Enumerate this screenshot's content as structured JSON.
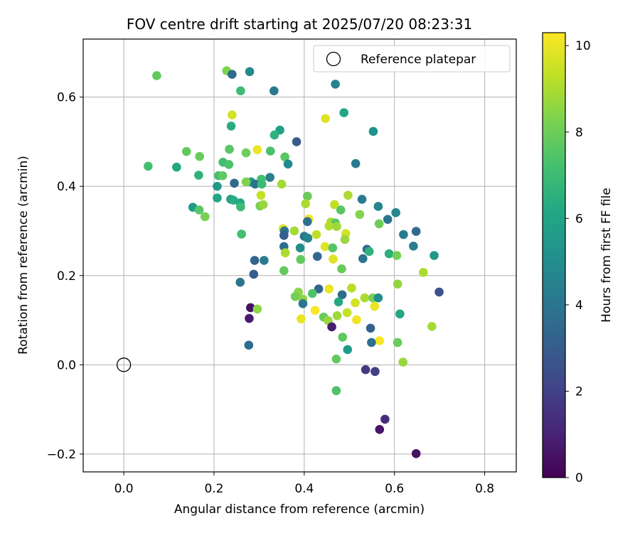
{
  "chart_data": {
    "type": "scatter",
    "title": "FOV centre drift starting at 2025/07/20 08:23:31",
    "xlabel": "Angular distance from reference (arcmin)",
    "ylabel": "Rotation from reference (arcmin)",
    "xlim": [
      -0.09,
      0.87
    ],
    "ylim": [
      -0.24,
      0.73
    ],
    "xticks": [
      0.0,
      0.2,
      0.4,
      0.6,
      0.8
    ],
    "xtick_labels": [
      "0.0",
      "0.2",
      "0.4",
      "0.6",
      "0.8"
    ],
    "yticks": [
      -0.2,
      0.0,
      0.2,
      0.4,
      0.6
    ],
    "ytick_labels": [
      "−0.2",
      "0.0",
      "0.2",
      "0.4",
      "0.6"
    ],
    "grid": true,
    "legend": {
      "placement": "top-right",
      "entries": [
        {
          "label": "Reference platepar",
          "marker": "open-circle",
          "x": 0.0,
          "y": 0.0
        }
      ]
    },
    "colorbar": {
      "label": "Hours from first FF file",
      "colormap": "viridis",
      "range": [
        0,
        10.3
      ],
      "ticks": [
        0,
        2,
        4,
        6,
        8,
        10
      ],
      "tick_labels": [
        "0",
        "2",
        "4",
        "6",
        "8",
        "10"
      ]
    },
    "points": [
      {
        "x": 0.073,
        "y": 0.648,
        "h": 7.8
      },
      {
        "x": 0.228,
        "y": 0.659,
        "h": 8.3
      },
      {
        "x": 0.24,
        "y": 0.651,
        "h": 3.6
      },
      {
        "x": 0.279,
        "y": 0.657,
        "h": 4.8
      },
      {
        "x": 0.259,
        "y": 0.614,
        "h": 7.0
      },
      {
        "x": 0.333,
        "y": 0.614,
        "h": 4.2
      },
      {
        "x": 0.469,
        "y": 0.629,
        "h": 4.6
      },
      {
        "x": 0.488,
        "y": 0.565,
        "h": 6.1
      },
      {
        "x": 0.24,
        "y": 0.56,
        "h": 9.6
      },
      {
        "x": 0.447,
        "y": 0.552,
        "h": 9.8
      },
      {
        "x": 0.553,
        "y": 0.523,
        "h": 5.2
      },
      {
        "x": 0.238,
        "y": 0.535,
        "h": 6.4
      },
      {
        "x": 0.346,
        "y": 0.526,
        "h": 5.8
      },
      {
        "x": 0.334,
        "y": 0.515,
        "h": 6.6
      },
      {
        "x": 0.383,
        "y": 0.5,
        "h": 3.0
      },
      {
        "x": 0.296,
        "y": 0.482,
        "h": 10.0
      },
      {
        "x": 0.234,
        "y": 0.483,
        "h": 7.6
      },
      {
        "x": 0.325,
        "y": 0.479,
        "h": 7.3
      },
      {
        "x": 0.271,
        "y": 0.475,
        "h": 8.0
      },
      {
        "x": 0.139,
        "y": 0.478,
        "h": 7.8
      },
      {
        "x": 0.168,
        "y": 0.467,
        "h": 7.9
      },
      {
        "x": 0.357,
        "y": 0.466,
        "h": 7.6
      },
      {
        "x": 0.514,
        "y": 0.451,
        "h": 4.2
      },
      {
        "x": 0.054,
        "y": 0.445,
        "h": 7.2
      },
      {
        "x": 0.117,
        "y": 0.443,
        "h": 6.2
      },
      {
        "x": 0.22,
        "y": 0.454,
        "h": 7.1
      },
      {
        "x": 0.233,
        "y": 0.449,
        "h": 7.4
      },
      {
        "x": 0.364,
        "y": 0.45,
        "h": 4.8
      },
      {
        "x": 0.166,
        "y": 0.425,
        "h": 6.6
      },
      {
        "x": 0.21,
        "y": 0.424,
        "h": 7.2
      },
      {
        "x": 0.219,
        "y": 0.424,
        "h": 7.7
      },
      {
        "x": 0.324,
        "y": 0.42,
        "h": 4.4
      },
      {
        "x": 0.305,
        "y": 0.416,
        "h": 7.2
      },
      {
        "x": 0.282,
        "y": 0.41,
        "h": 5.6
      },
      {
        "x": 0.271,
        "y": 0.41,
        "h": 8.3
      },
      {
        "x": 0.245,
        "y": 0.407,
        "h": 3.5
      },
      {
        "x": 0.291,
        "y": 0.405,
        "h": 3.9
      },
      {
        "x": 0.306,
        "y": 0.405,
        "h": 7.0
      },
      {
        "x": 0.35,
        "y": 0.405,
        "h": 8.9
      },
      {
        "x": 0.207,
        "y": 0.4,
        "h": 5.5
      },
      {
        "x": 0.304,
        "y": 0.38,
        "h": 9.4
      },
      {
        "x": 0.407,
        "y": 0.378,
        "h": 7.9
      },
      {
        "x": 0.497,
        "y": 0.38,
        "h": 9.0
      },
      {
        "x": 0.207,
        "y": 0.374,
        "h": 6.0
      },
      {
        "x": 0.237,
        "y": 0.371,
        "h": 5.8
      },
      {
        "x": 0.243,
        "y": 0.369,
        "h": 6.4
      },
      {
        "x": 0.528,
        "y": 0.371,
        "h": 4.2
      },
      {
        "x": 0.258,
        "y": 0.363,
        "h": 6.1
      },
      {
        "x": 0.302,
        "y": 0.356,
        "h": 8.2
      },
      {
        "x": 0.309,
        "y": 0.359,
        "h": 8.7
      },
      {
        "x": 0.403,
        "y": 0.361,
        "h": 9.0
      },
      {
        "x": 0.467,
        "y": 0.359,
        "h": 9.3
      },
      {
        "x": 0.564,
        "y": 0.355,
        "h": 4.7
      },
      {
        "x": 0.153,
        "y": 0.353,
        "h": 5.6
      },
      {
        "x": 0.167,
        "y": 0.347,
        "h": 7.6
      },
      {
        "x": 0.259,
        "y": 0.354,
        "h": 7.0
      },
      {
        "x": 0.481,
        "y": 0.347,
        "h": 7.6
      },
      {
        "x": 0.523,
        "y": 0.337,
        "h": 8.4
      },
      {
        "x": 0.603,
        "y": 0.341,
        "h": 4.7
      },
      {
        "x": 0.18,
        "y": 0.332,
        "h": 8.2
      },
      {
        "x": 0.41,
        "y": 0.327,
        "h": 10.1
      },
      {
        "x": 0.407,
        "y": 0.321,
        "h": 3.8
      },
      {
        "x": 0.459,
        "y": 0.32,
        "h": 9.0
      },
      {
        "x": 0.469,
        "y": 0.318,
        "h": 7.6
      },
      {
        "x": 0.585,
        "y": 0.326,
        "h": 3.9
      },
      {
        "x": 0.566,
        "y": 0.316,
        "h": 8.0
      },
      {
        "x": 0.455,
        "y": 0.311,
        "h": 9.1
      },
      {
        "x": 0.472,
        "y": 0.31,
        "h": 8.8
      },
      {
        "x": 0.353,
        "y": 0.305,
        "h": 9.8
      },
      {
        "x": 0.356,
        "y": 0.3,
        "h": 4.0
      },
      {
        "x": 0.378,
        "y": 0.3,
        "h": 8.9
      },
      {
        "x": 0.62,
        "y": 0.292,
        "h": 4.3
      },
      {
        "x": 0.648,
        "y": 0.299,
        "h": 3.5
      },
      {
        "x": 0.261,
        "y": 0.293,
        "h": 7.2
      },
      {
        "x": 0.355,
        "y": 0.29,
        "h": 3.0
      },
      {
        "x": 0.4,
        "y": 0.288,
        "h": 4.1
      },
      {
        "x": 0.408,
        "y": 0.284,
        "h": 4.7
      },
      {
        "x": 0.427,
        "y": 0.292,
        "h": 9.3
      },
      {
        "x": 0.492,
        "y": 0.294,
        "h": 9.6
      },
      {
        "x": 0.49,
        "y": 0.281,
        "h": 8.7
      },
      {
        "x": 0.355,
        "y": 0.265,
        "h": 3.8
      },
      {
        "x": 0.391,
        "y": 0.262,
        "h": 5.0
      },
      {
        "x": 0.446,
        "y": 0.265,
        "h": 9.8
      },
      {
        "x": 0.463,
        "y": 0.262,
        "h": 7.5
      },
      {
        "x": 0.539,
        "y": 0.259,
        "h": 3.7
      },
      {
        "x": 0.544,
        "y": 0.254,
        "h": 6.6
      },
      {
        "x": 0.642,
        "y": 0.266,
        "h": 4.4
      },
      {
        "x": 0.358,
        "y": 0.251,
        "h": 9.0
      },
      {
        "x": 0.588,
        "y": 0.249,
        "h": 6.5
      },
      {
        "x": 0.605,
        "y": 0.245,
        "h": 8.1
      },
      {
        "x": 0.688,
        "y": 0.245,
        "h": 5.4
      },
      {
        "x": 0.429,
        "y": 0.243,
        "h": 3.5
      },
      {
        "x": 0.464,
        "y": 0.237,
        "h": 9.8
      },
      {
        "x": 0.53,
        "y": 0.238,
        "h": 4.0
      },
      {
        "x": 0.392,
        "y": 0.236,
        "h": 7.8
      },
      {
        "x": 0.29,
        "y": 0.234,
        "h": 3.3
      },
      {
        "x": 0.311,
        "y": 0.234,
        "h": 4.3
      },
      {
        "x": 0.355,
        "y": 0.211,
        "h": 7.8
      },
      {
        "x": 0.483,
        "y": 0.215,
        "h": 7.9
      },
      {
        "x": 0.664,
        "y": 0.207,
        "h": 9.0
      },
      {
        "x": 0.288,
        "y": 0.203,
        "h": 3.0
      },
      {
        "x": 0.258,
        "y": 0.185,
        "h": 4.0
      },
      {
        "x": 0.607,
        "y": 0.181,
        "h": 8.6
      },
      {
        "x": 0.432,
        "y": 0.17,
        "h": 3.4
      },
      {
        "x": 0.455,
        "y": 0.17,
        "h": 10.0
      },
      {
        "x": 0.505,
        "y": 0.172,
        "h": 9.2
      },
      {
        "x": 0.699,
        "y": 0.163,
        "h": 2.6
      },
      {
        "x": 0.387,
        "y": 0.163,
        "h": 8.5
      },
      {
        "x": 0.418,
        "y": 0.16,
        "h": 7.4
      },
      {
        "x": 0.484,
        "y": 0.157,
        "h": 3.6
      },
      {
        "x": 0.38,
        "y": 0.153,
        "h": 8.1
      },
      {
        "x": 0.534,
        "y": 0.15,
        "h": 9.0
      },
      {
        "x": 0.552,
        "y": 0.15,
        "h": 8.2
      },
      {
        "x": 0.564,
        "y": 0.15,
        "h": 5.0
      },
      {
        "x": 0.397,
        "y": 0.147,
        "h": 8.5
      },
      {
        "x": 0.397,
        "y": 0.137,
        "h": 4.0
      },
      {
        "x": 0.476,
        "y": 0.141,
        "h": 6.2
      },
      {
        "x": 0.513,
        "y": 0.139,
        "h": 9.6
      },
      {
        "x": 0.556,
        "y": 0.131,
        "h": 10.0
      },
      {
        "x": 0.281,
        "y": 0.128,
        "h": 0.4
      },
      {
        "x": 0.296,
        "y": 0.125,
        "h": 8.5
      },
      {
        "x": 0.424,
        "y": 0.122,
        "h": 10.2
      },
      {
        "x": 0.473,
        "y": 0.11,
        "h": 8.8
      },
      {
        "x": 0.495,
        "y": 0.117,
        "h": 9.4
      },
      {
        "x": 0.612,
        "y": 0.114,
        "h": 6.1
      },
      {
        "x": 0.443,
        "y": 0.107,
        "h": 7.9
      },
      {
        "x": 0.453,
        "y": 0.099,
        "h": 8.7
      },
      {
        "x": 0.278,
        "y": 0.104,
        "h": 0.8
      },
      {
        "x": 0.393,
        "y": 0.103,
        "h": 10.0
      },
      {
        "x": 0.516,
        "y": 0.101,
        "h": 10.1
      },
      {
        "x": 0.461,
        "y": 0.085,
        "h": 0.9
      },
      {
        "x": 0.547,
        "y": 0.082,
        "h": 3.2
      },
      {
        "x": 0.683,
        "y": 0.086,
        "h": 8.9
      },
      {
        "x": 0.485,
        "y": 0.062,
        "h": 7.7
      },
      {
        "x": 0.567,
        "y": 0.054,
        "h": 10.2
      },
      {
        "x": 0.549,
        "y": 0.05,
        "h": 3.7
      },
      {
        "x": 0.607,
        "y": 0.05,
        "h": 7.9
      },
      {
        "x": 0.496,
        "y": 0.034,
        "h": 5.6
      },
      {
        "x": 0.277,
        "y": 0.044,
        "h": 3.7
      },
      {
        "x": 0.471,
        "y": 0.013,
        "h": 7.8
      },
      {
        "x": 0.619,
        "y": 0.006,
        "h": 8.7
      },
      {
        "x": 0.536,
        "y": -0.011,
        "h": 1.7
      },
      {
        "x": 0.557,
        "y": -0.015,
        "h": 1.9
      },
      {
        "x": 0.471,
        "y": -0.058,
        "h": 7.4
      },
      {
        "x": 0.579,
        "y": -0.122,
        "h": 1.3
      },
      {
        "x": 0.567,
        "y": -0.145,
        "h": 0.6
      },
      {
        "x": 0.648,
        "y": -0.199,
        "h": 0.5
      }
    ]
  }
}
